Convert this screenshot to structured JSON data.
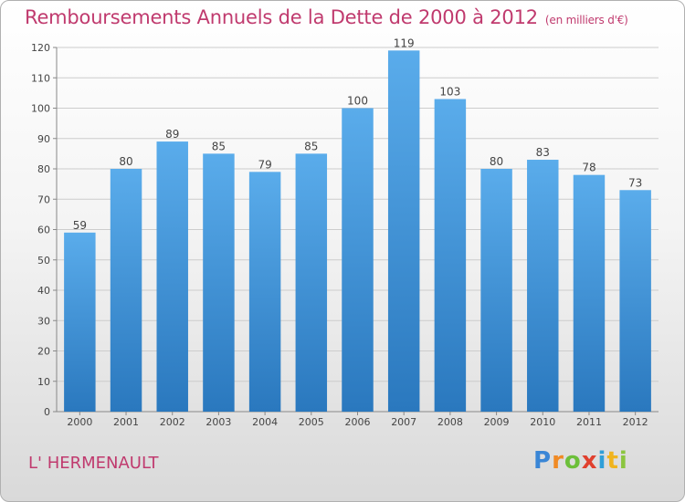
{
  "header": {
    "title": "Remboursements Annuels de la Dette de 2000 à 2012",
    "unit": "(en milliers d'€)"
  },
  "footer": {
    "town": "L' HERMENAULT",
    "logo": [
      "P",
      "r",
      "o",
      "x",
      "i",
      "t",
      "i"
    ]
  },
  "chart_data": {
    "type": "bar",
    "title": "Remboursements Annuels de la Dette de 2000 à 2012",
    "unit": "(en milliers d'€)",
    "categories": [
      "2000",
      "2001",
      "2002",
      "2003",
      "2004",
      "2005",
      "2006",
      "2007",
      "2008",
      "2009",
      "2010",
      "2011",
      "2012"
    ],
    "values": [
      59,
      80,
      89,
      85,
      79,
      85,
      100,
      119,
      103,
      80,
      83,
      78,
      73
    ],
    "ylim": [
      0,
      120
    ],
    "yticks": [
      0,
      10,
      20,
      30,
      40,
      50,
      60,
      70,
      80,
      90,
      100,
      110,
      120
    ],
    "grid": true,
    "colors": {
      "bar_top": "#5aaceb",
      "bar_bottom": "#2a78be",
      "grid": "#cccccc",
      "title": "#c03a6e"
    }
  }
}
